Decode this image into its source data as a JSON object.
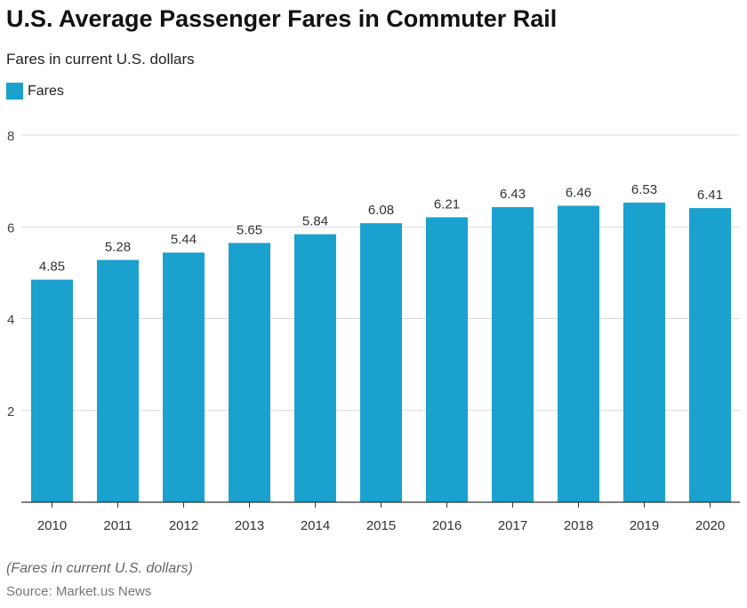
{
  "title": "U.S. Average Passenger Fares in Commuter Rail",
  "subtitle": "Fares in current U.S. dollars",
  "note": "(Fares in current U.S. dollars)",
  "source": "Source: Market.us News",
  "colors": {
    "bar": "#1ba1ce",
    "grid": "#d9d9d9",
    "axis": "#333333"
  },
  "chart_data": {
    "type": "bar",
    "categories": [
      "2010",
      "2011",
      "2012",
      "2013",
      "2014",
      "2015",
      "2016",
      "2017",
      "2018",
      "2019",
      "2020"
    ],
    "series": [
      {
        "name": "Fares",
        "values": [
          4.85,
          5.28,
          5.44,
          5.65,
          5.84,
          6.08,
          6.21,
          6.43,
          6.46,
          6.53,
          6.41
        ]
      }
    ],
    "value_labels": [
      "4.85",
      "5.28",
      "5.44",
      "5.65",
      "5.84",
      "6.08",
      "6.21",
      "6.43",
      "6.46",
      "6.53",
      "6.41"
    ],
    "yticks": [
      "2",
      "4",
      "6",
      "8"
    ],
    "ylim": [
      0,
      8
    ],
    "grid": true,
    "legend_placement": "top-left",
    "xlabel": "",
    "ylabel": ""
  }
}
